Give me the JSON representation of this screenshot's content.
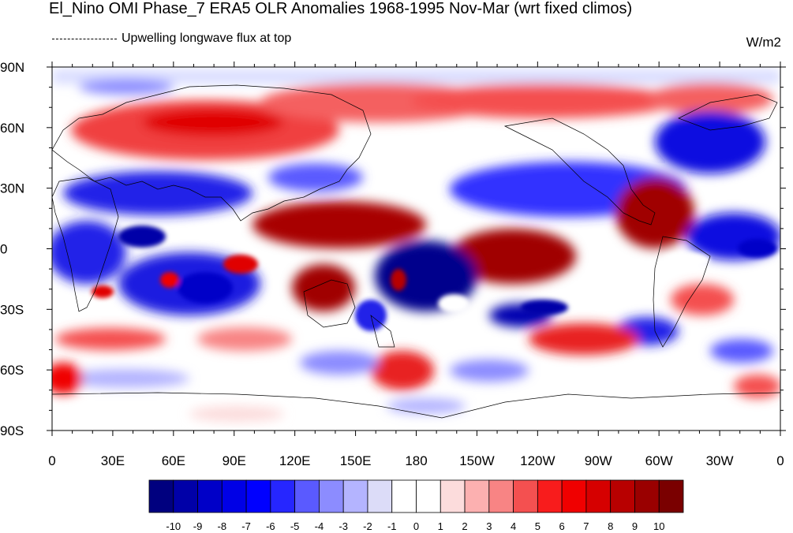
{
  "title": "El_Nino OMI Phase_7 ERA5 OLR Anomalies 1968-1995 Nov-Mar (wrt fixed climos)",
  "subtitle": "Upwelling longwave flux at top",
  "units": "W/m2",
  "lat_ticks": [
    "90N",
    "60N",
    "30N",
    "0",
    "30S",
    "60S",
    "90S"
  ],
  "lon_ticks": [
    "0",
    "30E",
    "60E",
    "90E",
    "120E",
    "150E",
    "180",
    "150W",
    "120W",
    "90W",
    "60W",
    "30W",
    "0"
  ],
  "colorbar": {
    "levels": [
      "-10",
      "-9",
      "-8",
      "-7",
      "-6",
      "-5",
      "-4",
      "-3",
      "-2",
      "-1",
      "0",
      "1",
      "2",
      "3",
      "4",
      "5",
      "6",
      "7",
      "8",
      "9",
      "10"
    ],
    "colors": [
      "#00007f",
      "#0000a8",
      "#0000c8",
      "#0000e6",
      "#0000ff",
      "#2626ff",
      "#5a5aff",
      "#8c8cff",
      "#b4b4ff",
      "#dcdcf8",
      "#ffffff",
      "#ffffff",
      "#fcdcdc",
      "#fcb0b0",
      "#f88484",
      "#f45050",
      "#f81c1c",
      "#f00000",
      "#d60000",
      "#b80000",
      "#9a0000",
      "#7a0000"
    ]
  }
}
